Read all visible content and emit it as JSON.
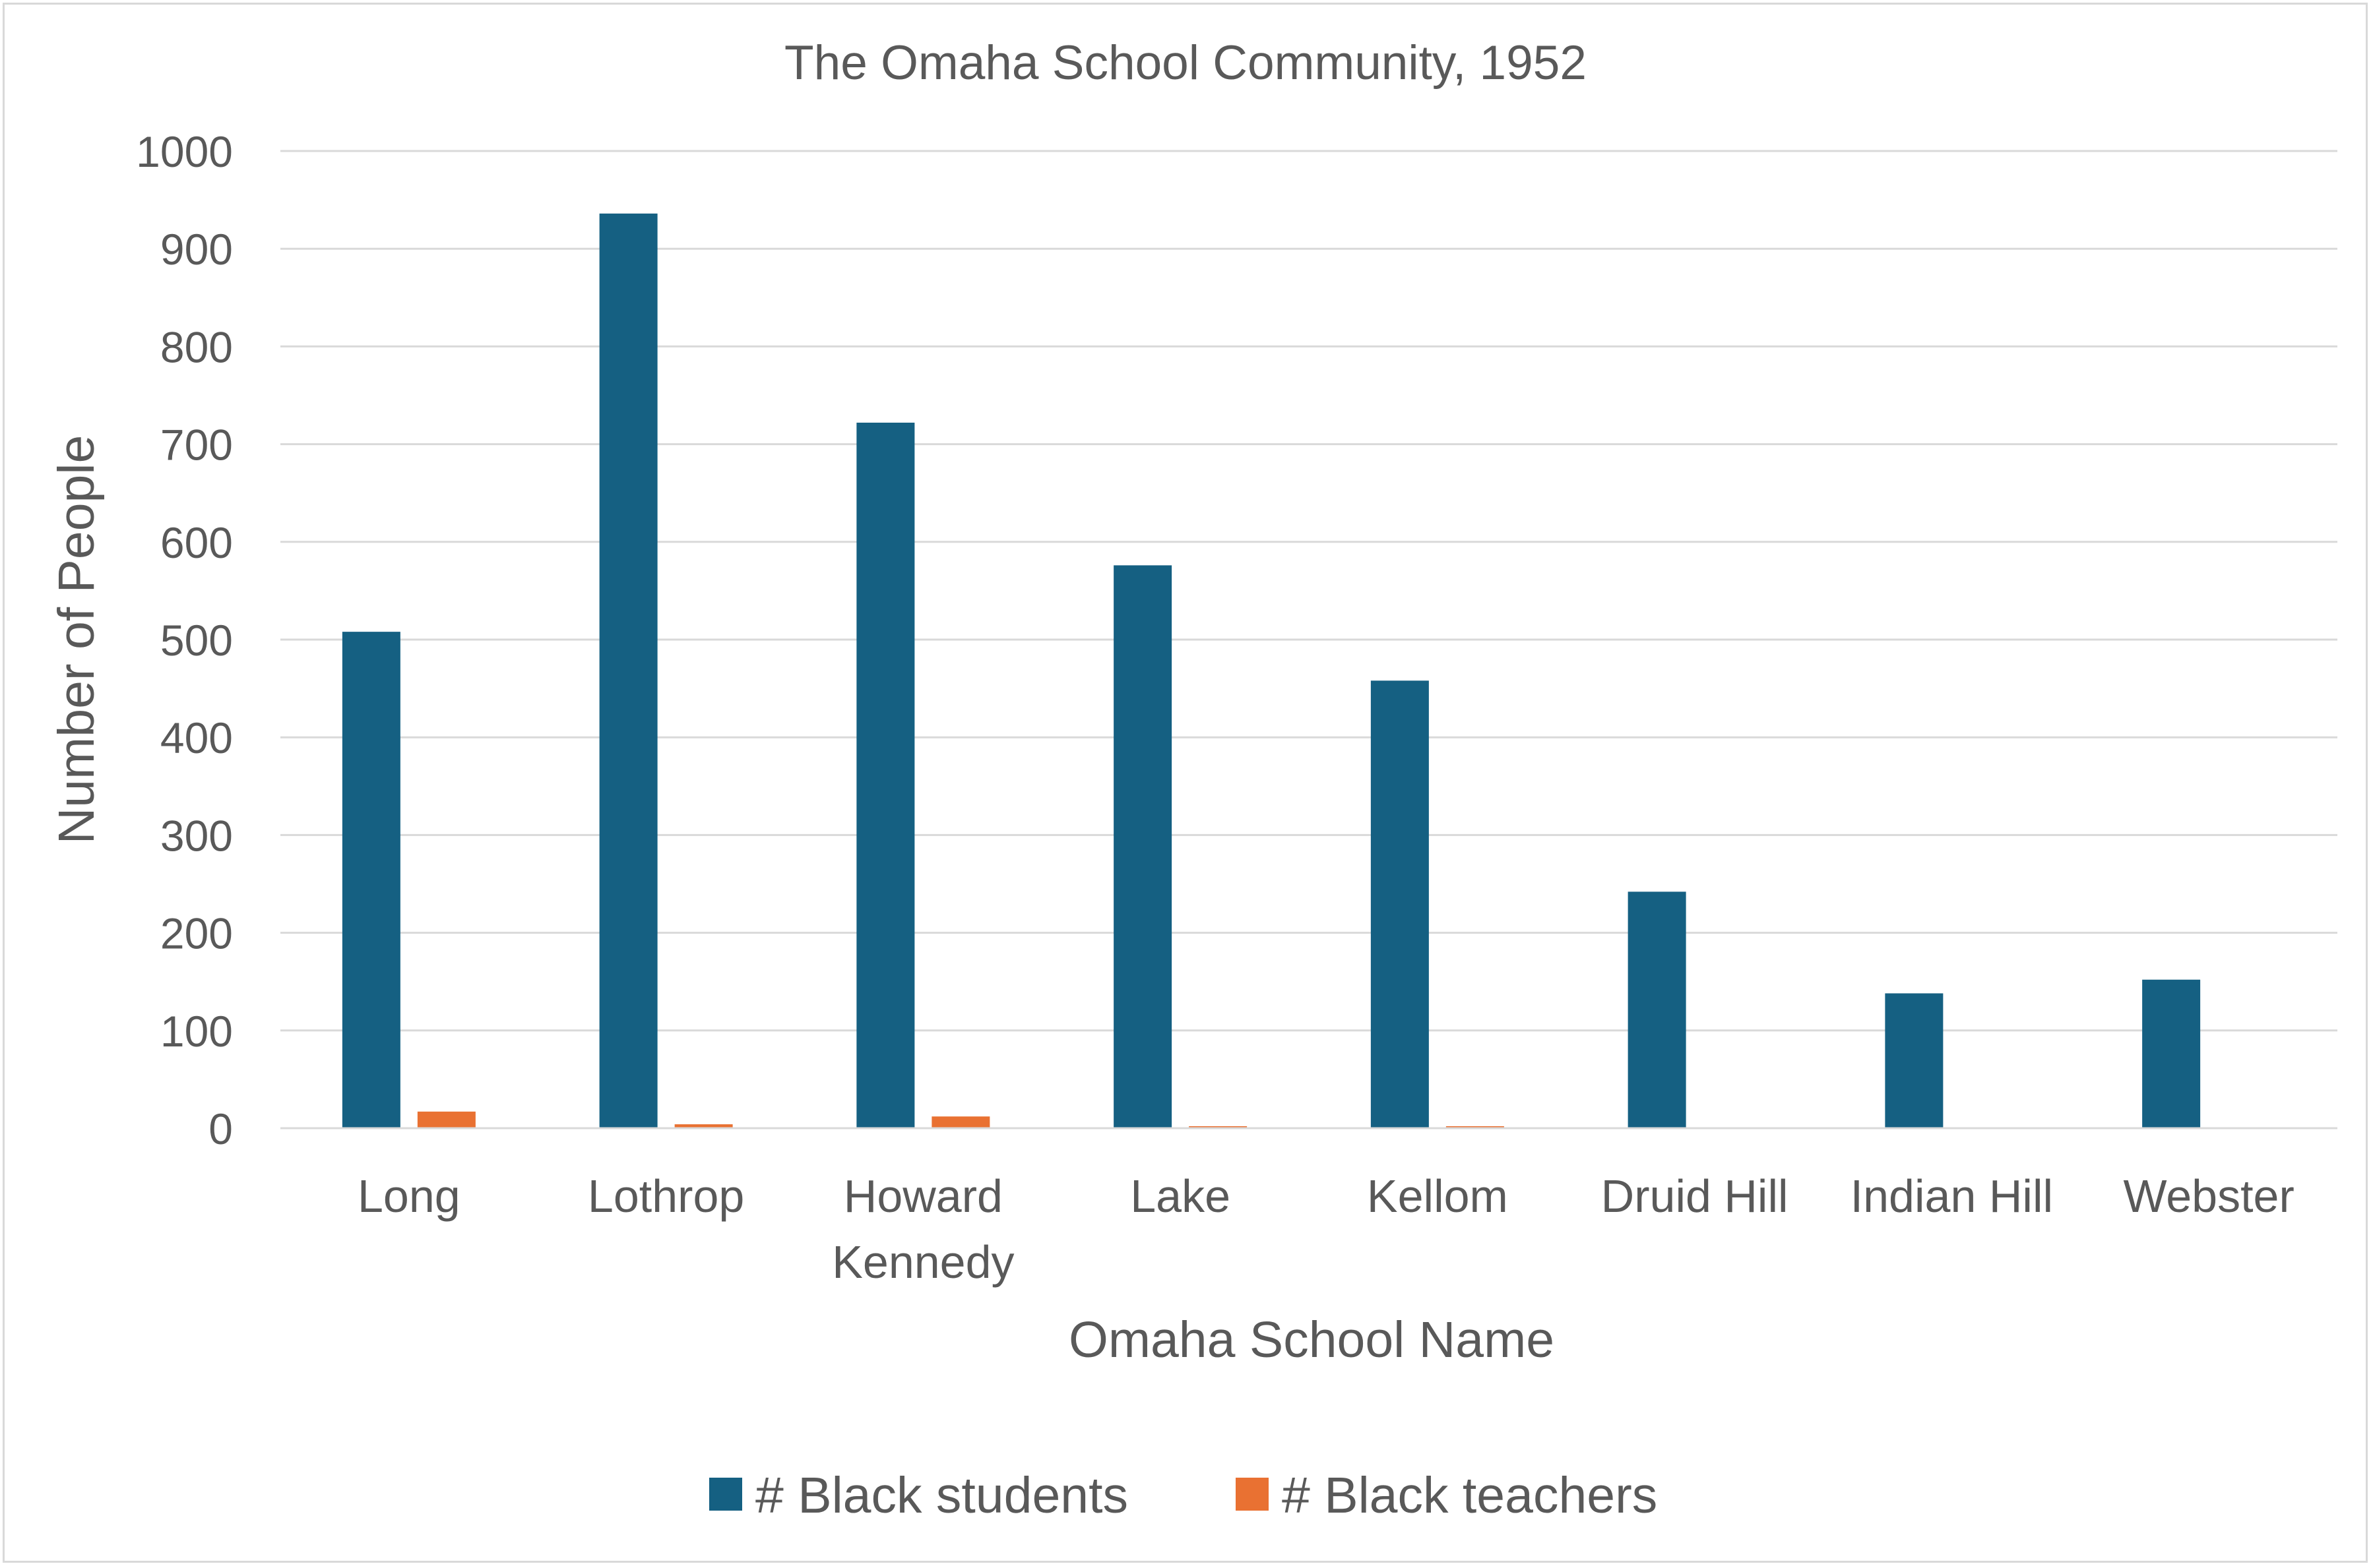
{
  "chart_data": {
    "type": "bar",
    "title": "The Omaha School Community, 1952",
    "xlabel": "Omaha School Name",
    "ylabel": "Number of People",
    "ylim": [
      0,
      1000
    ],
    "y_ticks": [
      "0",
      "100",
      "200",
      "300",
      "400",
      "500",
      "600",
      "700",
      "800",
      "900",
      "1000"
    ],
    "grid": true,
    "legend_position": "bottom",
    "categories": [
      [
        "Long"
      ],
      [
        "Lothrop"
      ],
      [
        "Howard",
        "Kennedy"
      ],
      [
        "Lake"
      ],
      [
        "Kellom"
      ],
      [
        "Druid Hill"
      ],
      [
        "Indian Hill"
      ],
      [
        "Webster"
      ]
    ],
    "series": [
      {
        "name": "# Black students",
        "color": "#156082",
        "values": [
          508,
          936,
          722,
          576,
          458,
          242,
          138,
          152
        ]
      },
      {
        "name": "# Black teachers",
        "color": "#e97132",
        "values": [
          17,
          4,
          12,
          2,
          1,
          0,
          0,
          0
        ]
      }
    ],
    "colors": {
      "text": "#595959",
      "grid": "#d9d9d9",
      "axis": "#d9d9d9",
      "frame": "#d9d9d9"
    }
  }
}
